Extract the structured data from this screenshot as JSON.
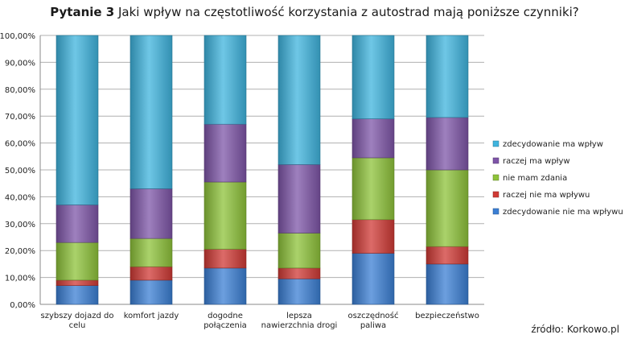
{
  "title_bold": "Pytanie 3",
  "title_rest": " Jaki wpływ na częstotliwość korzystania z autostrad mają poniższe czynniki?",
  "source": "źródło: Korkowo.pl",
  "chart_data": {
    "type": "bar",
    "stacked": true,
    "percent": true,
    "ylim": [
      0,
      100
    ],
    "y_tick_labels": [
      "0,00%",
      "10,00%",
      "20,00%",
      "30,00%",
      "40,00%",
      "50,00%",
      "60,00%",
      "70,00%",
      "80,00%",
      "90,00%",
      "100,00%"
    ],
    "grid": true,
    "legend_position": "right",
    "categories": [
      [
        "szybszy dojazd do",
        "celu"
      ],
      [
        "komfort jazdy"
      ],
      [
        "dogodne",
        "połączenia"
      ],
      [
        "lepsza",
        "nawierzchnia drogi"
      ],
      [
        "oszczędność",
        "paliwa"
      ],
      [
        "bezpieczeństwo"
      ]
    ],
    "series": [
      {
        "name": "zdecydowanie nie ma wpływu",
        "color": "#3b7fd4",
        "values": [
          7,
          9,
          13.5,
          9.5,
          19,
          15
        ]
      },
      {
        "name": "raczej nie ma wpływu",
        "color": "#d03a35",
        "values": [
          2,
          5,
          7,
          4,
          12.5,
          6.5
        ]
      },
      {
        "name": "nie mam zdania",
        "color": "#8ec33a",
        "values": [
          14,
          10.5,
          25,
          13,
          23,
          28.5
        ]
      },
      {
        "name": "raczej ma wpływ",
        "color": "#7e55a8",
        "values": [
          14,
          18.5,
          21.5,
          25.5,
          14.5,
          19.5
        ]
      },
      {
        "name": "zdecydowanie ma wpływ",
        "color": "#3fb4de",
        "values": [
          63,
          57,
          33,
          48,
          31,
          30.5
        ]
      }
    ]
  }
}
